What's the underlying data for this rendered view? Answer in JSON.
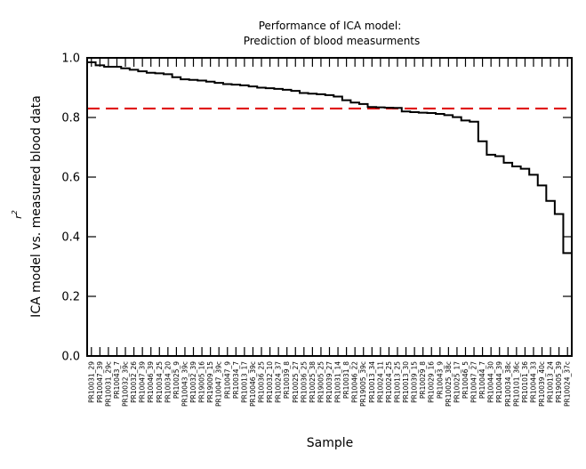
{
  "chart_data": {
    "type": "line",
    "title": "Performance of ICA model:",
    "subtitle": "Prediction of blood measurments",
    "xlabel": "Sample",
    "ylabel": "ICA model vs. measured blood data",
    "ylabel_sub": "r",
    "ylabel_sub_sup": "2",
    "ylim": [
      0,
      1
    ],
    "yticks": [
      "0.0",
      "0.2",
      "0.4",
      "0.6",
      "0.8",
      "1.0"
    ],
    "yticks_values": [
      0,
      0.2,
      0.4,
      0.6,
      0.8,
      1.0
    ],
    "grid": false,
    "categories": [
      "PR10031_29",
      "PR10047_39",
      "PR10031_29c",
      "PR10043_7",
      "PR10032_39c",
      "PR10032_26",
      "PR10047_39",
      "PR10046_39",
      "PR10034_25",
      "PR10034_20",
      "PR10025_9",
      "PR10043_39c",
      "PR10032_39",
      "PR19005_16",
      "PR19009_15",
      "PR10047_39c",
      "PR10047_9",
      "PR10034_7",
      "PR10013_17",
      "PR10046_39c",
      "PR10036_25",
      "PR10032_10",
      "PR10024_37",
      "PR10039_8",
      "PR10025_27",
      "PR10036_25",
      "PR10025_38",
      "PR19005_25",
      "PR10039_27",
      "PR10031_14",
      "PR10031_8",
      "PR10046_22",
      "PR19005_39c",
      "PR10013_34",
      "PR10024_11",
      "PR10024_25",
      "PR10013_25",
      "PR10013_30",
      "PR10039_15",
      "PR10029_8",
      "PR10029_16",
      "PR10043_9",
      "PR10025_38c",
      "PR10025_17",
      "PR10046_5",
      "PR10047_27",
      "PR10044_7",
      "PR10044_30",
      "PR10044_39",
      "PR10034_38c",
      "PR10101_36c",
      "PR10101_36",
      "PR10044_33",
      "PR10039_40c",
      "PR10013_24",
      "PR19005_39",
      "PR10024_37c"
    ],
    "series": [
      {
        "style": "step",
        "color": "#000000",
        "values": [
          0.985,
          0.975,
          0.97,
          0.97,
          0.965,
          0.96,
          0.955,
          0.95,
          0.948,
          0.945,
          0.935,
          0.928,
          0.926,
          0.924,
          0.92,
          0.916,
          0.912,
          0.91,
          0.908,
          0.904,
          0.9,
          0.898,
          0.896,
          0.893,
          0.889,
          0.882,
          0.88,
          0.878,
          0.875,
          0.87,
          0.858,
          0.85,
          0.845,
          0.835,
          0.834,
          0.833,
          0.832,
          0.82,
          0.818,
          0.816,
          0.815,
          0.812,
          0.808,
          0.801,
          0.79,
          0.786,
          0.72,
          0.675,
          0.67,
          0.648,
          0.636,
          0.628,
          0.608,
          0.572,
          0.52,
          0.476,
          0.345
        ]
      }
    ],
    "reference_line": {
      "y": 0.83,
      "style": "dashed",
      "color": "#e01010"
    }
  }
}
